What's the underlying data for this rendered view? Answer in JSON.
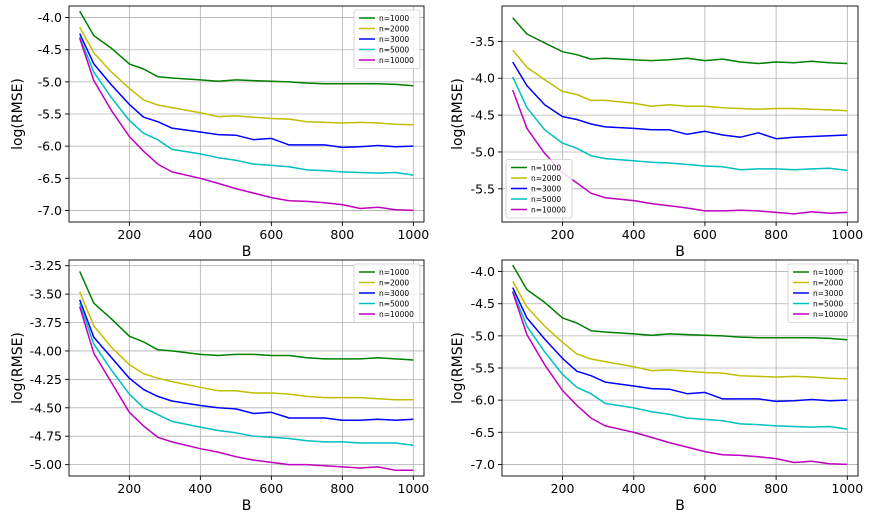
{
  "colors": {
    "n=1000": "#008000",
    "n=2000": "#bfbf00",
    "n=3000": "#0000ff",
    "n=5000": "#00bfbf",
    "n=10000": "#bf00bf"
  },
  "chart_data": [
    {
      "type": "line",
      "xlabel": "B",
      "ylabel": "log(RMSE)",
      "xlim": [
        30,
        1030
      ],
      "ylim": [
        -7.18,
        -3.82
      ],
      "xticks": [
        200,
        400,
        600,
        800,
        1000
      ],
      "xtick_labels": [
        "200",
        "400",
        "600",
        "800",
        "1000"
      ],
      "yticks": [
        -4.0,
        -4.5,
        -5.0,
        -5.5,
        -6.0,
        -6.5,
        -7.0
      ],
      "ytick_labels": [
        "-4.0",
        "-4.5",
        "-5.0",
        "-5.5",
        "-6.0",
        "-6.5",
        "-7.0"
      ],
      "grid": true,
      "legend_position": "upper-right",
      "x": [
        60,
        100,
        150,
        200,
        240,
        280,
        320,
        400,
        450,
        500,
        550,
        600,
        650,
        700,
        750,
        800,
        850,
        900,
        950,
        1000
      ],
      "series": [
        {
          "name": "n=1000",
          "values": [
            -3.9,
            -4.28,
            -4.48,
            -4.72,
            -4.8,
            -4.92,
            -4.94,
            -4.97,
            -4.99,
            -4.97,
            -4.98,
            -4.99,
            -5.0,
            -5.02,
            -5.03,
            -5.03,
            -5.03,
            -5.03,
            -5.04,
            -5.06
          ]
        },
        {
          "name": "n=2000",
          "values": [
            -4.15,
            -4.55,
            -4.85,
            -5.1,
            -5.28,
            -5.36,
            -5.4,
            -5.48,
            -5.54,
            -5.53,
            -5.55,
            -5.57,
            -5.58,
            -5.62,
            -5.63,
            -5.64,
            -5.63,
            -5.64,
            -5.66,
            -5.67
          ]
        },
        {
          "name": "n=3000",
          "values": [
            -4.25,
            -4.72,
            -5.05,
            -5.35,
            -5.55,
            -5.62,
            -5.72,
            -5.78,
            -5.82,
            -5.83,
            -5.9,
            -5.88,
            -5.98,
            -5.98,
            -5.98,
            -6.02,
            -6.01,
            -5.99,
            -6.01,
            -6.0
          ]
        },
        {
          "name": "n=5000",
          "values": [
            -4.3,
            -4.85,
            -5.25,
            -5.6,
            -5.8,
            -5.9,
            -6.05,
            -6.12,
            -6.18,
            -6.22,
            -6.28,
            -6.3,
            -6.32,
            -6.37,
            -6.38,
            -6.4,
            -6.41,
            -6.42,
            -6.41,
            -6.45
          ]
        },
        {
          "name": "n=10000",
          "values": [
            -4.32,
            -4.98,
            -5.45,
            -5.85,
            -6.08,
            -6.28,
            -6.4,
            -6.5,
            -6.58,
            -6.66,
            -6.73,
            -6.8,
            -6.85,
            -6.86,
            -6.88,
            -6.91,
            -6.97,
            -6.95,
            -6.99,
            -7.0
          ]
        }
      ]
    },
    {
      "type": "line",
      "xlabel": "B",
      "ylabel": "log(RMSE)",
      "xlim": [
        30,
        1030
      ],
      "ylim": [
        -5.95,
        -3.02
      ],
      "xticks": [
        200,
        400,
        600,
        800,
        1000
      ],
      "xtick_labels": [
        "200",
        "400",
        "600",
        "800",
        "1000"
      ],
      "yticks": [
        -3.5,
        -4.0,
        -4.5,
        -5.0,
        -5.5
      ],
      "ytick_labels": [
        "-3.5",
        "-4.0",
        "-4.5",
        "-5.0",
        "-5.5"
      ],
      "grid": true,
      "legend_position": "lower-left",
      "x": [
        60,
        100,
        150,
        200,
        240,
        280,
        320,
        400,
        450,
        500,
        550,
        600,
        650,
        700,
        750,
        800,
        850,
        900,
        950,
        1000
      ],
      "series": [
        {
          "name": "n=1000",
          "values": [
            -3.18,
            -3.4,
            -3.52,
            -3.64,
            -3.68,
            -3.74,
            -3.73,
            -3.75,
            -3.76,
            -3.75,
            -3.73,
            -3.76,
            -3.74,
            -3.78,
            -3.8,
            -3.78,
            -3.79,
            -3.77,
            -3.79,
            -3.8
          ]
        },
        {
          "name": "n=2000",
          "values": [
            -3.62,
            -3.85,
            -4.02,
            -4.18,
            -4.22,
            -4.3,
            -4.3,
            -4.34,
            -4.38,
            -4.36,
            -4.38,
            -4.38,
            -4.4,
            -4.41,
            -4.42,
            -4.41,
            -4.41,
            -4.42,
            -4.43,
            -4.44
          ]
        },
        {
          "name": "n=3000",
          "values": [
            -3.78,
            -4.1,
            -4.36,
            -4.52,
            -4.56,
            -4.62,
            -4.66,
            -4.68,
            -4.7,
            -4.7,
            -4.76,
            -4.72,
            -4.77,
            -4.8,
            -4.74,
            -4.82,
            -4.8,
            -4.79,
            -4.78,
            -4.77
          ]
        },
        {
          "name": "n=5000",
          "values": [
            -3.98,
            -4.4,
            -4.7,
            -4.88,
            -4.95,
            -5.05,
            -5.09,
            -5.12,
            -5.14,
            -5.15,
            -5.17,
            -5.19,
            -5.2,
            -5.24,
            -5.23,
            -5.23,
            -5.24,
            -5.23,
            -5.22,
            -5.25
          ]
        },
        {
          "name": "n=10000",
          "values": [
            -4.16,
            -4.68,
            -5.02,
            -5.28,
            -5.42,
            -5.56,
            -5.62,
            -5.66,
            -5.7,
            -5.73,
            -5.76,
            -5.8,
            -5.8,
            -5.79,
            -5.8,
            -5.82,
            -5.84,
            -5.81,
            -5.83,
            -5.82
          ]
        }
      ]
    },
    {
      "type": "line",
      "xlabel": "B",
      "ylabel": "log(RMSE)",
      "xlim": [
        30,
        1030
      ],
      "ylim": [
        -5.1,
        -3.2
      ],
      "xticks": [
        200,
        400,
        600,
        800,
        1000
      ],
      "xtick_labels": [
        "200",
        "400",
        "600",
        "800",
        "1000"
      ],
      "yticks": [
        -3.25,
        -3.5,
        -3.75,
        -4.0,
        -4.25,
        -4.5,
        -4.75,
        -5.0
      ],
      "ytick_labels": [
        "-3.25",
        "-3.50",
        "-3.75",
        "-4.00",
        "-4.25",
        "-4.50",
        "-4.75",
        "-5.00"
      ],
      "grid": true,
      "legend_position": "upper-right",
      "x": [
        60,
        100,
        150,
        200,
        240,
        280,
        320,
        400,
        450,
        500,
        550,
        600,
        650,
        700,
        750,
        800,
        850,
        900,
        950,
        1000
      ],
      "series": [
        {
          "name": "n=1000",
          "values": [
            -3.3,
            -3.58,
            -3.72,
            -3.87,
            -3.92,
            -3.99,
            -4.0,
            -4.03,
            -4.04,
            -4.03,
            -4.03,
            -4.04,
            -4.04,
            -4.06,
            -4.07,
            -4.07,
            -4.07,
            -4.06,
            -4.07,
            -4.08
          ]
        },
        {
          "name": "n=2000",
          "values": [
            -3.48,
            -3.78,
            -3.97,
            -4.12,
            -4.2,
            -4.24,
            -4.27,
            -4.32,
            -4.35,
            -4.35,
            -4.37,
            -4.37,
            -4.38,
            -4.4,
            -4.41,
            -4.41,
            -4.41,
            -4.42,
            -4.43,
            -4.43
          ]
        },
        {
          "name": "n=3000",
          "values": [
            -3.55,
            -3.88,
            -4.06,
            -4.24,
            -4.34,
            -4.4,
            -4.44,
            -4.48,
            -4.5,
            -4.51,
            -4.55,
            -4.54,
            -4.59,
            -4.59,
            -4.59,
            -4.61,
            -4.61,
            -4.6,
            -4.61,
            -4.6
          ]
        },
        {
          "name": "n=5000",
          "values": [
            -3.58,
            -3.94,
            -4.17,
            -4.38,
            -4.5,
            -4.56,
            -4.62,
            -4.67,
            -4.7,
            -4.72,
            -4.75,
            -4.76,
            -4.77,
            -4.79,
            -4.8,
            -4.8,
            -4.81,
            -4.81,
            -4.81,
            -4.83
          ]
        },
        {
          "name": "n=10000",
          "values": [
            -3.61,
            -4.02,
            -4.28,
            -4.54,
            -4.66,
            -4.76,
            -4.8,
            -4.86,
            -4.89,
            -4.93,
            -4.96,
            -4.98,
            -5.0,
            -5.0,
            -5.01,
            -5.02,
            -5.03,
            -5.02,
            -5.05,
            -5.05
          ]
        }
      ]
    },
    {
      "type": "line",
      "xlabel": "B",
      "ylabel": "log(RMSE)",
      "xlim": [
        30,
        1030
      ],
      "ylim": [
        -7.18,
        -3.82
      ],
      "xticks": [
        200,
        400,
        600,
        800,
        1000
      ],
      "xtick_labels": [
        "200",
        "400",
        "600",
        "800",
        "1000"
      ],
      "yticks": [
        -4.0,
        -4.5,
        -5.0,
        -5.5,
        -6.0,
        -6.5,
        -7.0
      ],
      "ytick_labels": [
        "-4.0",
        "-4.5",
        "-5.0",
        "-5.5",
        "-6.0",
        "-6.5",
        "-7.0"
      ],
      "grid": true,
      "legend_position": "upper-right",
      "x": [
        60,
        100,
        150,
        200,
        240,
        280,
        320,
        400,
        450,
        500,
        550,
        600,
        650,
        700,
        750,
        800,
        850,
        900,
        950,
        1000
      ],
      "series": [
        {
          "name": "n=1000",
          "values": [
            -3.9,
            -4.28,
            -4.48,
            -4.72,
            -4.8,
            -4.92,
            -4.94,
            -4.97,
            -4.99,
            -4.97,
            -4.98,
            -4.99,
            -5.0,
            -5.02,
            -5.03,
            -5.03,
            -5.03,
            -5.03,
            -5.04,
            -5.06
          ]
        },
        {
          "name": "n=2000",
          "values": [
            -4.15,
            -4.55,
            -4.85,
            -5.1,
            -5.28,
            -5.36,
            -5.4,
            -5.48,
            -5.54,
            -5.53,
            -5.55,
            -5.57,
            -5.58,
            -5.62,
            -5.63,
            -5.64,
            -5.63,
            -5.64,
            -5.66,
            -5.67
          ]
        },
        {
          "name": "n=3000",
          "values": [
            -4.25,
            -4.72,
            -5.05,
            -5.35,
            -5.55,
            -5.62,
            -5.72,
            -5.78,
            -5.82,
            -5.83,
            -5.9,
            -5.88,
            -5.98,
            -5.98,
            -5.98,
            -6.02,
            -6.01,
            -5.99,
            -6.01,
            -6.0
          ]
        },
        {
          "name": "n=5000",
          "values": [
            -4.3,
            -4.85,
            -5.25,
            -5.6,
            -5.8,
            -5.9,
            -6.05,
            -6.12,
            -6.18,
            -6.22,
            -6.28,
            -6.3,
            -6.32,
            -6.37,
            -6.38,
            -6.4,
            -6.41,
            -6.42,
            -6.41,
            -6.45
          ]
        },
        {
          "name": "n=10000",
          "values": [
            -4.32,
            -4.98,
            -5.45,
            -5.85,
            -6.08,
            -6.28,
            -6.4,
            -6.5,
            -6.58,
            -6.66,
            -6.73,
            -6.8,
            -6.85,
            -6.86,
            -6.88,
            -6.91,
            -6.97,
            -6.95,
            -6.99,
            -7.0
          ]
        }
      ]
    }
  ]
}
